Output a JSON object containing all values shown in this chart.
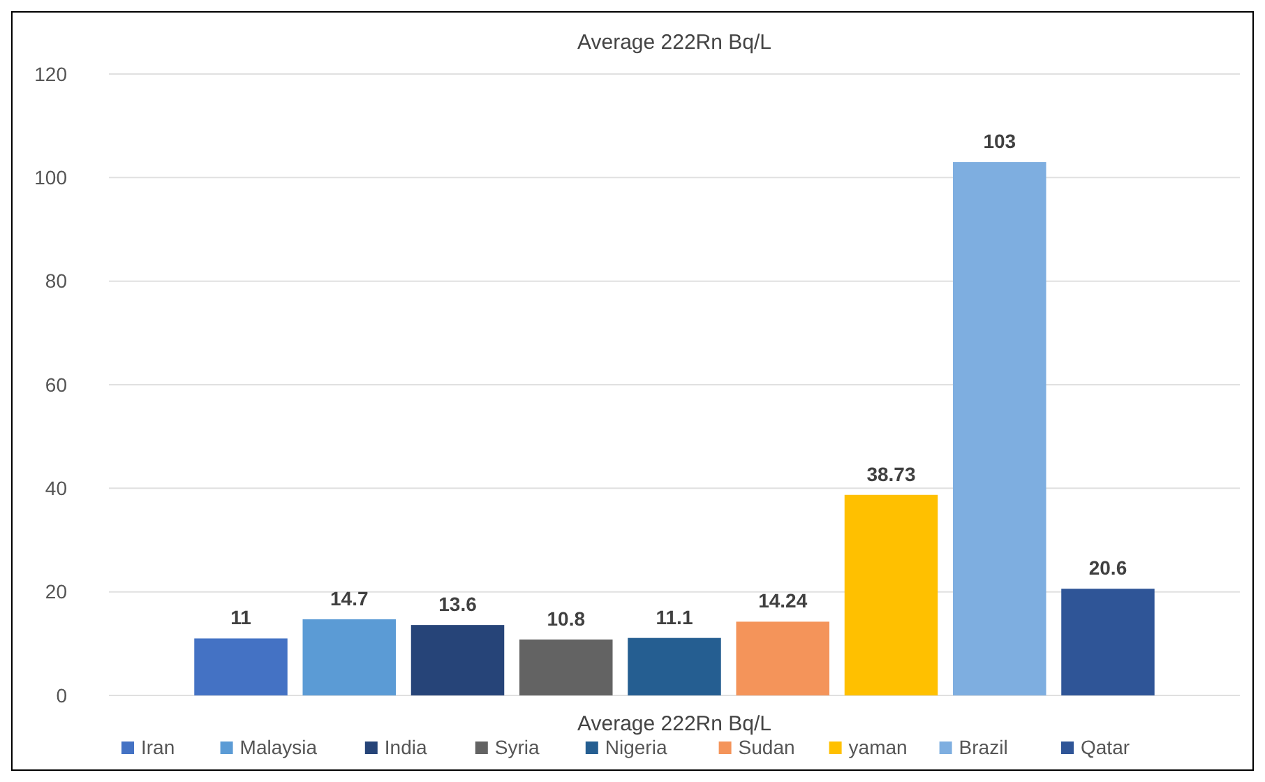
{
  "chart_data": {
    "type": "bar",
    "title": "Average 222Rn Bq/L",
    "xlabel": "Average 222Rn Bq/L",
    "categories": [
      null
    ],
    "series": [
      {
        "name": "Iran",
        "color": "#4472c4",
        "values": [
          11
        ]
      },
      {
        "name": "Malaysia",
        "color": "#5b9bd5",
        "values": [
          14.7
        ]
      },
      {
        "name": "India",
        "color": "#264478",
        "values": [
          13.6
        ]
      },
      {
        "name": "Syria",
        "color": "#636363",
        "values": [
          10.8
        ]
      },
      {
        "name": "Nigeria",
        "color": "#255e91",
        "values": [
          11.1
        ]
      },
      {
        "name": "Sudan",
        "color": "#f4945a",
        "values": [
          14.24
        ]
      },
      {
        "name": "yaman",
        "color": "#ffc000",
        "values": [
          38.73
        ]
      },
      {
        "name": "Brazil",
        "color": "#7eaee0",
        "values": [
          103
        ]
      },
      {
        "name": "Qatar",
        "color": "#2f5597",
        "values": [
          20.6
        ]
      }
    ],
    "ylim": [
      0,
      120
    ],
    "yticks": [
      0,
      20,
      40,
      60,
      80,
      100,
      120
    ],
    "grid": "y",
    "data_labels": true,
    "legend": "bottom"
  }
}
